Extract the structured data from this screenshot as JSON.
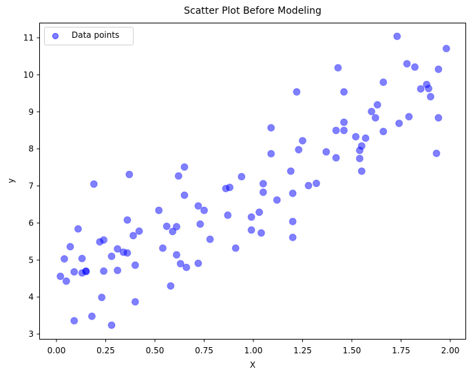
{
  "chart_data": {
    "type": "scatter",
    "title": "Scatter Plot Before Modeling",
    "xlabel": "X",
    "ylabel": "y",
    "xlim": [
      -0.09,
      2.08
    ],
    "ylim": [
      2.85,
      11.35
    ],
    "grid": false,
    "legend": {
      "position": "upper left",
      "entries": [
        "Data points"
      ]
    },
    "xticks": [
      "0.00",
      "0.25",
      "0.50",
      "0.75",
      "1.00",
      "1.25",
      "1.50",
      "1.75",
      "2.00"
    ],
    "xtick_values": [
      0,
      0.25,
      0.5,
      0.75,
      1.0,
      1.25,
      1.5,
      1.75,
      2.0
    ],
    "yticks": [
      "3",
      "4",
      "5",
      "6",
      "7",
      "8",
      "9",
      "10",
      "11"
    ],
    "ytick_values": [
      3,
      4,
      5,
      6,
      7,
      8,
      9,
      10,
      11
    ],
    "marker_color": "#0000ff",
    "marker_alpha": 0.5,
    "series": [
      {
        "name": "Data points",
        "points": [
          [
            0.02,
            4.56
          ],
          [
            0.04,
            5.03
          ],
          [
            0.05,
            4.43
          ],
          [
            0.07,
            5.36
          ],
          [
            0.09,
            4.68
          ],
          [
            0.09,
            3.36
          ],
          [
            0.11,
            5.84
          ],
          [
            0.13,
            5.04
          ],
          [
            0.13,
            4.65
          ],
          [
            0.15,
            4.7
          ],
          [
            0.15,
            4.69
          ],
          [
            0.18,
            3.48
          ],
          [
            0.19,
            7.05
          ],
          [
            0.22,
            5.49
          ],
          [
            0.23,
            3.99
          ],
          [
            0.24,
            5.54
          ],
          [
            0.24,
            4.7
          ],
          [
            0.28,
            5.1
          ],
          [
            0.28,
            3.24
          ],
          [
            0.31,
            4.72
          ],
          [
            0.31,
            5.3
          ],
          [
            0.34,
            5.21
          ],
          [
            0.36,
            5.19
          ],
          [
            0.36,
            6.08
          ],
          [
            0.37,
            7.31
          ],
          [
            0.39,
            5.66
          ],
          [
            0.4,
            3.87
          ],
          [
            0.4,
            4.86
          ],
          [
            0.42,
            5.78
          ],
          [
            0.52,
            6.34
          ],
          [
            0.54,
            5.32
          ],
          [
            0.56,
            5.91
          ],
          [
            0.58,
            4.3
          ],
          [
            0.59,
            5.77
          ],
          [
            0.61,
            5.14
          ],
          [
            0.61,
            5.9
          ],
          [
            0.62,
            7.27
          ],
          [
            0.63,
            4.9
          ],
          [
            0.65,
            7.51
          ],
          [
            0.65,
            6.75
          ],
          [
            0.66,
            4.8
          ],
          [
            0.72,
            4.91
          ],
          [
            0.72,
            6.46
          ],
          [
            0.73,
            5.97
          ],
          [
            0.75,
            6.34
          ],
          [
            0.78,
            5.56
          ],
          [
            0.86,
            6.93
          ],
          [
            0.87,
            6.21
          ],
          [
            0.88,
            6.96
          ],
          [
            0.91,
            5.32
          ],
          [
            0.94,
            7.25
          ],
          [
            0.99,
            6.16
          ],
          [
            0.99,
            5.81
          ],
          [
            1.03,
            6.29
          ],
          [
            1.04,
            5.73
          ],
          [
            1.05,
            7.06
          ],
          [
            1.05,
            6.83
          ],
          [
            1.09,
            8.57
          ],
          [
            1.09,
            7.87
          ],
          [
            1.12,
            6.62
          ],
          [
            1.19,
            7.4
          ],
          [
            1.2,
            6.04
          ],
          [
            1.2,
            5.61
          ],
          [
            1.2,
            6.8
          ],
          [
            1.22,
            9.54
          ],
          [
            1.23,
            7.98
          ],
          [
            1.25,
            8.22
          ],
          [
            1.28,
            7.01
          ],
          [
            1.32,
            7.07
          ],
          [
            1.37,
            7.92
          ],
          [
            1.42,
            8.5
          ],
          [
            1.42,
            7.76
          ],
          [
            1.43,
            10.19
          ],
          [
            1.46,
            9.54
          ],
          [
            1.46,
            8.72
          ],
          [
            1.46,
            8.5
          ],
          [
            1.52,
            8.33
          ],
          [
            1.54,
            7.96
          ],
          [
            1.54,
            7.74
          ],
          [
            1.55,
            8.08
          ],
          [
            1.55,
            7.4
          ],
          [
            1.57,
            8.29
          ],
          [
            1.6,
            9.01
          ],
          [
            1.62,
            8.84
          ],
          [
            1.63,
            9.19
          ],
          [
            1.66,
            9.8
          ],
          [
            1.66,
            8.47
          ],
          [
            1.73,
            11.04
          ],
          [
            1.74,
            8.69
          ],
          [
            1.78,
            10.3
          ],
          [
            1.79,
            8.87
          ],
          [
            1.82,
            10.21
          ],
          [
            1.85,
            9.62
          ],
          [
            1.88,
            9.74
          ],
          [
            1.89,
            9.63
          ],
          [
            1.9,
            9.41
          ],
          [
            1.93,
            7.88
          ],
          [
            1.94,
            10.15
          ],
          [
            1.94,
            8.84
          ],
          [
            1.98,
            10.71
          ]
        ]
      }
    ]
  }
}
